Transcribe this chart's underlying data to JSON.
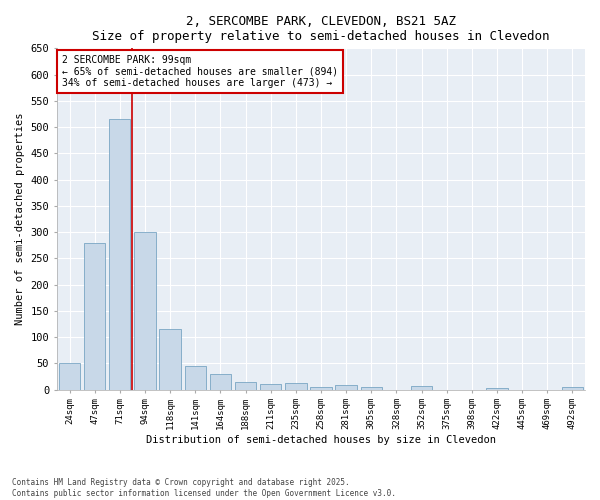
{
  "title": "2, SERCOMBE PARK, CLEVEDON, BS21 5AZ",
  "subtitle": "Size of property relative to semi-detached houses in Clevedon",
  "xlabel": "Distribution of semi-detached houses by size in Clevedon",
  "ylabel": "Number of semi-detached properties",
  "categories": [
    "24sqm",
    "47sqm",
    "71sqm",
    "94sqm",
    "118sqm",
    "141sqm",
    "164sqm",
    "188sqm",
    "211sqm",
    "235sqm",
    "258sqm",
    "281sqm",
    "305sqm",
    "328sqm",
    "352sqm",
    "375sqm",
    "398sqm",
    "422sqm",
    "445sqm",
    "469sqm",
    "492sqm"
  ],
  "values": [
    50,
    280,
    515,
    300,
    115,
    45,
    30,
    15,
    10,
    12,
    5,
    8,
    5,
    0,
    6,
    0,
    0,
    3,
    0,
    0,
    5
  ],
  "bar_color": "#c8d8e8",
  "bar_edge_color": "#6699bb",
  "vline_x_index": 2.5,
  "marker_label": "2 SERCOMBE PARK: 99sqm",
  "pct_smaller": "65% of semi-detached houses are smaller (894)",
  "pct_larger": "34% of semi-detached houses are larger (473)",
  "annotation_box_color": "#ffffff",
  "annotation_box_edge": "#cc0000",
  "vline_color": "#cc0000",
  "ylim": [
    0,
    650
  ],
  "yticks": [
    0,
    50,
    100,
    150,
    200,
    250,
    300,
    350,
    400,
    450,
    500,
    550,
    600,
    650
  ],
  "bg_color": "#e8eef5",
  "fig_bg_color": "#ffffff",
  "footer_line1": "Contains HM Land Registry data © Crown copyright and database right 2025.",
  "footer_line2": "Contains public sector information licensed under the Open Government Licence v3.0."
}
